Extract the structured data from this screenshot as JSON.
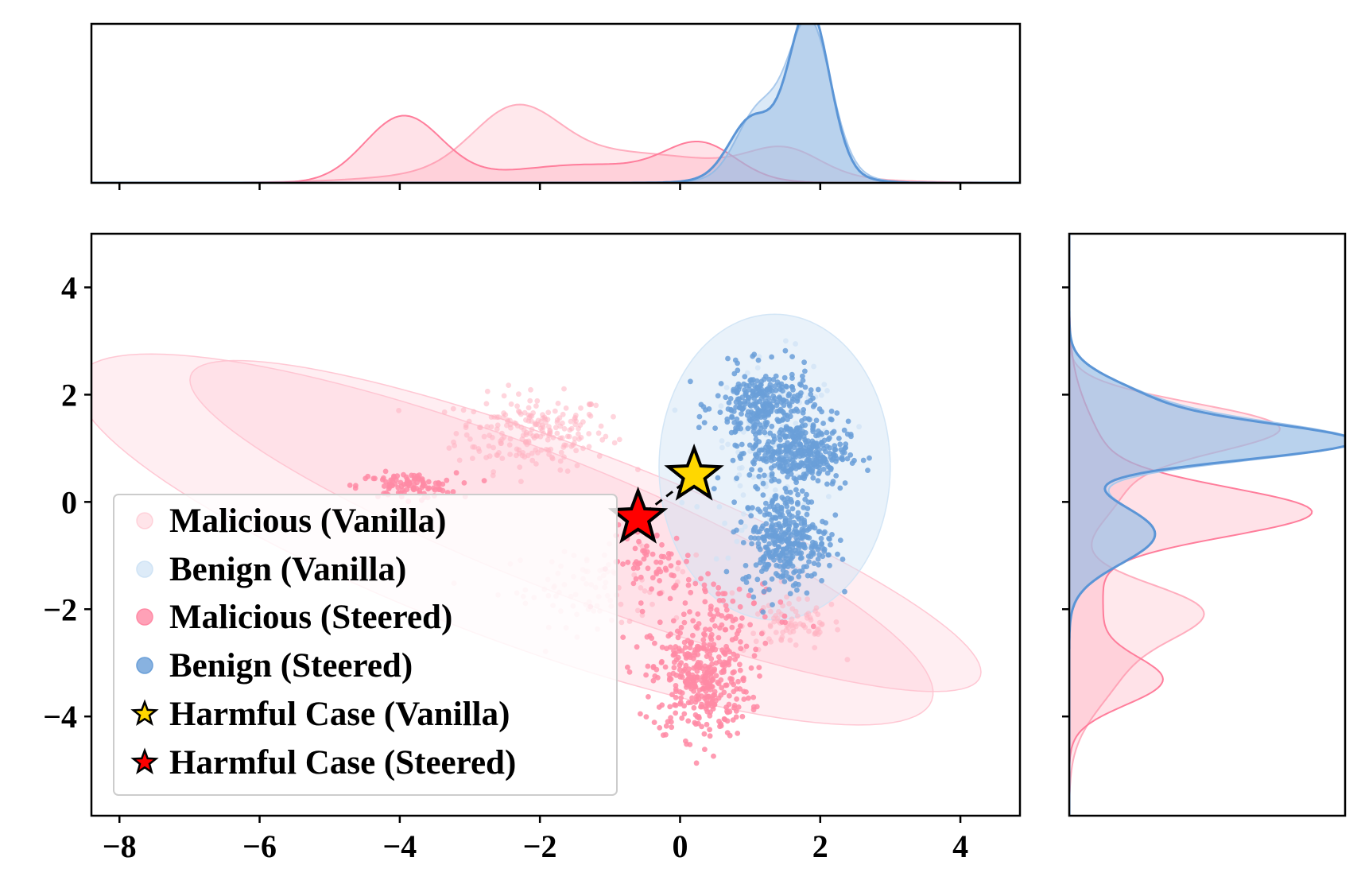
{
  "chart_data": {
    "type": "scatter",
    "subtype": "joint scatter plot with marginal KDE density plots and covariance ellipses",
    "title": "",
    "xlabel": "",
    "ylabel": "",
    "xlim": [
      -8.4,
      4.85
    ],
    "ylim": [
      -5.85,
      5.0
    ],
    "xticks": [
      -8,
      -6,
      -4,
      -2,
      0,
      2,
      4
    ],
    "yticks": [
      -4,
      -2,
      0,
      2,
      4
    ],
    "grid": false,
    "legend_position": "lower-left",
    "colors": {
      "malicious_vanilla": "#ffb3c1",
      "malicious_steered": "#ff8aa5",
      "benign_vanilla": "#cfe3f5",
      "benign_steered": "#6a9fd8",
      "harmful_vanilla": "#ffd700",
      "harmful_steered": "#ff0000"
    },
    "series": [
      {
        "name": "Malicious (Vanilla)",
        "kind": "scatter",
        "clusters": [
          {
            "center": [
              -2.1,
              1.3
            ],
            "spread": [
              0.55,
              0.35
            ],
            "count": 220
          },
          {
            "center": [
              -1.2,
              -1.6
            ],
            "spread": [
              0.7,
              0.35
            ],
            "count": 90
          },
          {
            "center": [
              1.6,
              -2.3
            ],
            "spread": [
              0.35,
              0.25
            ],
            "count": 80
          }
        ],
        "ellipses": [
          {
            "center": [
              -2.5,
              -0.7
            ],
            "semi_axes": [
              6.8,
              1.75
            ],
            "angle_deg": -27
          },
          {
            "center": [
              -1.35,
              -0.45
            ],
            "semi_axes": [
              6.3,
              1.3
            ],
            "angle_deg": -27
          }
        ]
      },
      {
        "name": "Benign (Vanilla)",
        "kind": "scatter",
        "clusters": [
          {
            "center": [
              1.35,
              0.8
            ],
            "spread": [
              0.5,
              0.9
            ],
            "count": 120
          }
        ],
        "ellipses": [
          {
            "center": [
              1.35,
              0.65
            ],
            "semi_axes": [
              1.65,
              2.85
            ],
            "angle_deg": 0
          }
        ]
      },
      {
        "name": "Malicious (Steered)",
        "kind": "scatter",
        "clusters": [
          {
            "center": [
              -3.9,
              0.3
            ],
            "spread": [
              0.35,
              0.12
            ],
            "count": 100
          },
          {
            "center": [
              0.3,
              -3.3
            ],
            "spread": [
              0.35,
              0.55
            ],
            "count": 380
          },
          {
            "center": [
              -0.4,
              -1.1
            ],
            "spread": [
              0.3,
              0.3
            ],
            "count": 60
          },
          {
            "center": [
              0.6,
              -2.0
            ],
            "spread": [
              0.5,
              0.3
            ],
            "count": 70
          }
        ]
      },
      {
        "name": "Benign (Steered)",
        "kind": "scatter",
        "clusters": [
          {
            "center": [
              1.2,
              1.8
            ],
            "spread": [
              0.35,
              0.35
            ],
            "count": 300
          },
          {
            "center": [
              1.7,
              0.9
            ],
            "spread": [
              0.35,
              0.3
            ],
            "count": 350
          },
          {
            "center": [
              1.5,
              -0.7
            ],
            "spread": [
              0.3,
              0.45
            ],
            "count": 350
          }
        ]
      },
      {
        "name": "Harmful Case (Vanilla)",
        "kind": "star",
        "x": 0.2,
        "y": 0.5
      },
      {
        "name": "Harmful Case (Steered)",
        "kind": "star",
        "x": -0.6,
        "y": -0.3
      }
    ],
    "top_marginal_kde": {
      "xlim": [
        -8.4,
        4.85
      ],
      "xticks": [
        -8,
        -6,
        -4,
        -2,
        0,
        2,
        4
      ],
      "series": [
        {
          "name": "Malicious (Vanilla)",
          "components": [
            [
              -2.35,
              0.6,
              0.36
            ],
            [
              -1.0,
              1.8,
              0.2
            ],
            [
              1.5,
              0.5,
              0.16
            ]
          ]
        },
        {
          "name": "Malicious (Steered)",
          "components": [
            [
              -3.95,
              0.55,
              0.43
            ],
            [
              -1.3,
              1.2,
              0.12
            ],
            [
              0.3,
              0.5,
              0.22
            ]
          ]
        },
        {
          "name": "Benign (Vanilla)",
          "components": [
            [
              1.85,
              0.3,
              0.9
            ],
            [
              1.1,
              0.3,
              0.35
            ],
            [
              1.6,
              0.6,
              0.18
            ]
          ]
        },
        {
          "name": "Benign (Steered)",
          "components": [
            [
              1.85,
              0.28,
              1.0
            ],
            [
              1.0,
              0.3,
              0.3
            ],
            [
              1.5,
              0.6,
              0.18
            ]
          ]
        }
      ]
    },
    "right_marginal_kde": {
      "ylim": [
        -5.85,
        5.0
      ],
      "yticks": [
        -4,
        -2,
        0,
        2,
        4
      ],
      "series": [
        {
          "name": "Malicious (Vanilla)",
          "components": [
            [
              1.4,
              0.45,
              0.75
            ],
            [
              0.3,
              0.7,
              0.2
            ],
            [
              -2.0,
              0.5,
              0.42
            ],
            [
              -3.0,
              0.8,
              0.2
            ]
          ]
        },
        {
          "name": "Malicious (Steered)",
          "components": [
            [
              -0.2,
              0.45,
              0.8
            ],
            [
              -3.35,
              0.45,
              0.32
            ],
            [
              0.5,
              1.0,
              0.15
            ],
            [
              -2.0,
              0.9,
              0.12
            ]
          ]
        },
        {
          "name": "Benign (Vanilla)",
          "components": [
            [
              1.1,
              0.35,
              1.0
            ],
            [
              1.8,
              0.45,
              0.3
            ],
            [
              -0.6,
              0.55,
              0.33
            ]
          ]
        },
        {
          "name": "Benign (Steered)",
          "components": [
            [
              1.1,
              0.33,
              1.0
            ],
            [
              1.8,
              0.45,
              0.3
            ],
            [
              -0.6,
              0.55,
              0.33
            ]
          ]
        }
      ]
    }
  }
}
